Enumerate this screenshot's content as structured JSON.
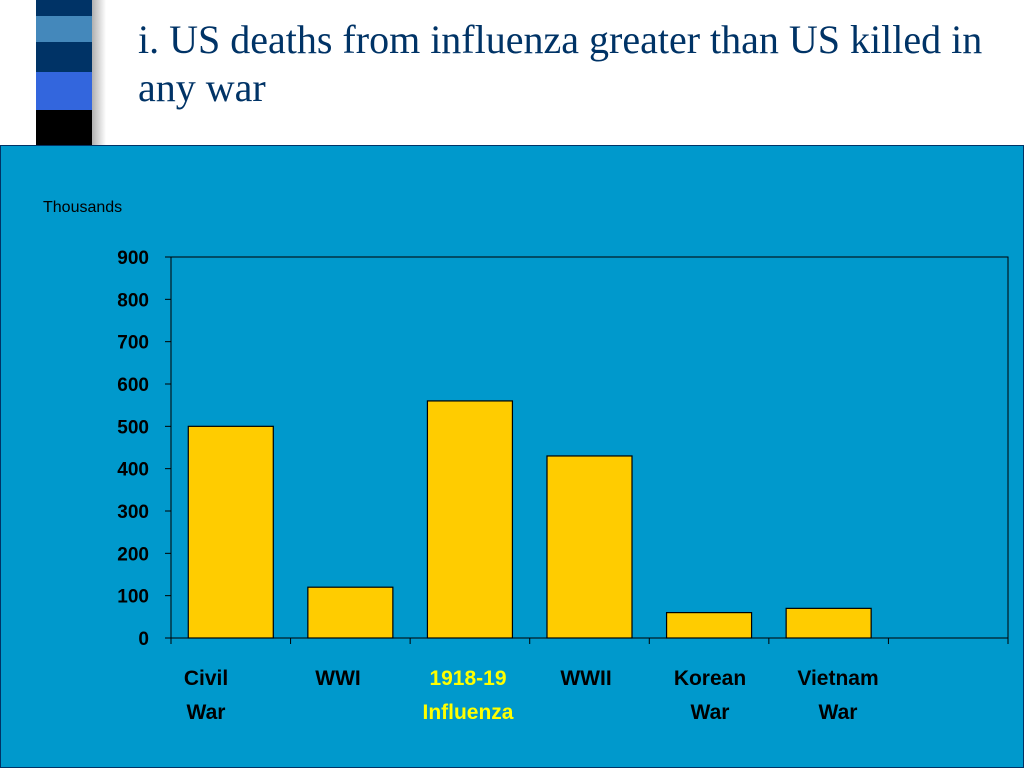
{
  "slide": {
    "title": "i. US deaths from influenza greater than US killed in any war"
  },
  "colors": {
    "panel": "#0099CC",
    "bar": "#FFCC00",
    "text": "#000000",
    "title": "#003366",
    "highlight": "#FFFF00",
    "deco": [
      "#003366",
      "#4488bb",
      "#003366",
      "#3366dd",
      "#000000"
    ]
  },
  "chart_data": {
    "type": "bar",
    "ylabel": "Thousands",
    "ylim": [
      0,
      900
    ],
    "yticks": [
      "0",
      "100",
      "200",
      "300",
      "400",
      "500",
      "600",
      "700",
      "800",
      "900"
    ],
    "categories": [
      "Civil\nWar",
      "WWI",
      "1918-19\nInfluenza",
      "WWII",
      "Korean\nWar",
      "Vietnam\nWar"
    ],
    "highlight_category": "1918-19\nInfluenza",
    "values": [
      500,
      120,
      560,
      430,
      60,
      70
    ],
    "grid": false,
    "legend": "none"
  }
}
